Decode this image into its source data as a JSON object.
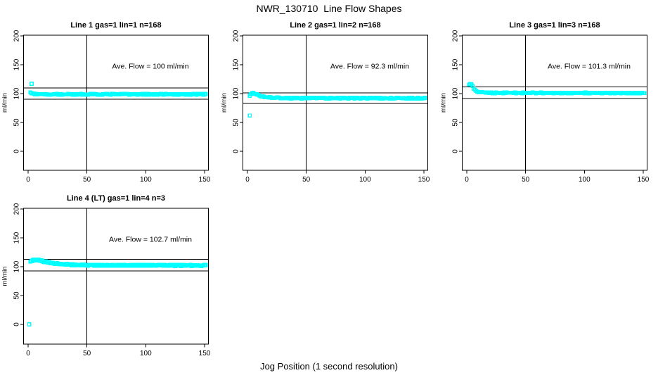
{
  "figure": {
    "title": "NWR_130710  Line Flow Shapes",
    "xlabel": "Jog Position (1 second resolution)"
  },
  "colors": {
    "points": "#00FFFF",
    "axis": "#000000",
    "background": "#FFFFFF"
  },
  "chart_data": {
    "type": "scatter",
    "marker": "open-square",
    "title": "NWR_130710  Line Flow Shapes",
    "xlabel": "Jog Position (1 second resolution)",
    "x_ticks": [
      0,
      50,
      100,
      150
    ],
    "y_ticks": [
      0,
      50,
      100,
      150,
      200
    ],
    "xlim": [
      -4,
      153
    ],
    "ylim": [
      -33,
      201
    ],
    "grid": false,
    "legend": false,
    "vline_x": 50,
    "x_resolution_seconds": 1,
    "panels": [
      {
        "title": "Line 1 gas=1 lin=1 n=168",
        "ylabel": "ml/min",
        "annotation": "Ave. Flow =  100  ml/min",
        "ave_flow": 100,
        "n": 168,
        "gas": 1,
        "lin": 1,
        "ref_lines": [
          110,
          90
        ],
        "x_range": [
          2,
          151
        ],
        "curve": [
          [
            2,
            103
          ],
          [
            3,
            101
          ],
          [
            4,
            100
          ],
          [
            6,
            99
          ],
          [
            10,
            98.7
          ],
          [
            30,
            98.6
          ],
          [
            80,
            98.8
          ],
          [
            151,
            98.7
          ]
        ],
        "outliers": [
          [
            3,
            117
          ]
        ],
        "jitter": 0.8,
        "passes": 1
      },
      {
        "title": "Line 2 gas=1 lin=2 n=168",
        "ylabel": "ml/min",
        "annotation": "Ave. Flow =  92.3  ml/min",
        "ave_flow": 92.3,
        "n": 168,
        "gas": 1,
        "lin": 2,
        "ref_lines": [
          101.5,
          83.1
        ],
        "x_range": [
          2,
          151
        ],
        "curve": [
          [
            2,
            96.5
          ],
          [
            3,
            99.5
          ],
          [
            5,
            101
          ],
          [
            7,
            99.5
          ],
          [
            9,
            97.5
          ],
          [
            12,
            95.5
          ],
          [
            15,
            94.3
          ],
          [
            19,
            93.3
          ],
          [
            24,
            92.7
          ],
          [
            30,
            92.3
          ],
          [
            151,
            92
          ]
        ],
        "outliers": [
          [
            2,
            62
          ]
        ],
        "jitter": 0.8,
        "passes": 1
      },
      {
        "title": "Line 3 gas=1 lin=3 n=168",
        "ylabel": "ml/min",
        "annotation": "Ave. Flow =  101.3  ml/min",
        "ave_flow": 101.3,
        "n": 168,
        "gas": 1,
        "lin": 3,
        "ref_lines": [
          111.4,
          91.2
        ],
        "x_range": [
          2,
          151
        ],
        "curve": [
          [
            2,
            115.5
          ],
          [
            3,
            116.5
          ],
          [
            4,
            115.5
          ],
          [
            5,
            112.5
          ],
          [
            6,
            109
          ],
          [
            7,
            106.5
          ],
          [
            8,
            104.5
          ],
          [
            10,
            102.8
          ],
          [
            13,
            101.8
          ],
          [
            18,
            101.3
          ],
          [
            151,
            101
          ]
        ],
        "outliers": [],
        "jitter": 0.7,
        "passes": 1
      },
      {
        "title": "Line 4 (LT) gas=1 lin=4 n=3",
        "ylabel": "ml/min",
        "annotation": "Ave. Flow =  102.7  ml/min",
        "ave_flow": 102.7,
        "n": 3,
        "gas": 1,
        "lin": 4,
        "ref_lines": [
          113,
          92.4
        ],
        "x_range": [
          2,
          151
        ],
        "curve": [
          [
            2,
            108.5
          ],
          [
            3,
            110
          ],
          [
            5,
            111.5
          ],
          [
            8,
            111.8
          ],
          [
            11,
            110.5
          ],
          [
            14,
            109
          ],
          [
            18,
            107.3
          ],
          [
            22,
            105.8
          ],
          [
            27,
            104.6
          ],
          [
            33,
            103.8
          ],
          [
            40,
            103.2
          ],
          [
            50,
            102.8
          ],
          [
            70,
            102.4
          ],
          [
            151,
            102.2
          ]
        ],
        "outliers": [
          [
            1,
            0
          ]
        ],
        "jitter": 1.0,
        "passes": 2
      }
    ]
  }
}
